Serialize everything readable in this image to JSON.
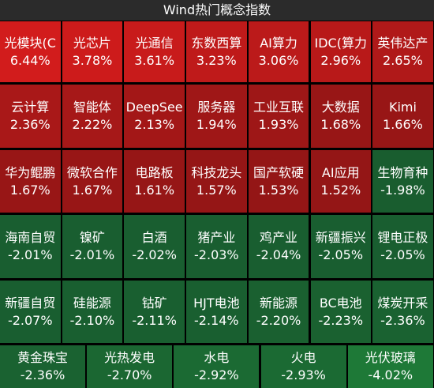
{
  "header": {
    "title": "Wind热门概念指数"
  },
  "tiles": [
    {
      "name": "光模块(C",
      "change": "6.44%"
    },
    {
      "name": "光芯片",
      "change": "3.78%"
    },
    {
      "name": "光通信",
      "change": "3.61%"
    },
    {
      "name": "东数西算",
      "change": "3.23%"
    },
    {
      "name": "AI算力",
      "change": "3.06%"
    },
    {
      "name": "IDC(算力",
      "change": "2.96%"
    },
    {
      "name": "英伟达产",
      "change": "2.65%"
    },
    {
      "name": "云计算",
      "change": "2.36%"
    },
    {
      "name": "智能体",
      "change": "2.22%"
    },
    {
      "name": "DeepSee",
      "change": "2.13%"
    },
    {
      "name": "服务器",
      "change": "1.94%"
    },
    {
      "name": "工业互联",
      "change": "1.93%"
    },
    {
      "name": "大数据",
      "change": "1.68%"
    },
    {
      "name": "Kimi",
      "change": "1.66%"
    },
    {
      "name": "华为鲲鹏",
      "change": "1.67%"
    },
    {
      "name": "微软合作",
      "change": "1.67%"
    },
    {
      "name": "电路板",
      "change": "1.61%"
    },
    {
      "name": "科技龙头",
      "change": "1.57%"
    },
    {
      "name": "国产软硬",
      "change": "1.53%"
    },
    {
      "name": "AI应用",
      "change": "1.52%"
    },
    {
      "name": "生物育种",
      "change": "-1.98%"
    },
    {
      "name": "海南自贸",
      "change": "-2.01%"
    },
    {
      "name": "镍矿",
      "change": "-2.01%"
    },
    {
      "name": "白酒",
      "change": "-2.02%"
    },
    {
      "name": "猪产业",
      "change": "-2.03%"
    },
    {
      "name": "鸡产业",
      "change": "-2.04%"
    },
    {
      "name": "新疆振兴",
      "change": "-2.05%"
    },
    {
      "name": "锂电正极",
      "change": "-2.05%"
    },
    {
      "name": "新疆自贸",
      "change": "-2.07%"
    },
    {
      "name": "硅能源",
      "change": "-2.10%"
    },
    {
      "name": "钴矿",
      "change": "-2.11%"
    },
    {
      "name": "HJT电池",
      "change": "-2.14%"
    },
    {
      "name": "新能源",
      "change": "-2.20%"
    },
    {
      "name": "BC电池",
      "change": "-2.23%"
    },
    {
      "name": "煤炭开采",
      "change": "-2.36%"
    },
    {
      "name": "黄金珠宝",
      "change": "-2.36%"
    },
    {
      "name": "光热发电",
      "change": "-2.70%"
    },
    {
      "name": "水电",
      "change": "-2.92%"
    },
    {
      "name": "火电",
      "change": "-2.93%"
    },
    {
      "name": "光伏玻璃",
      "change": "-4.02%"
    }
  ]
}
